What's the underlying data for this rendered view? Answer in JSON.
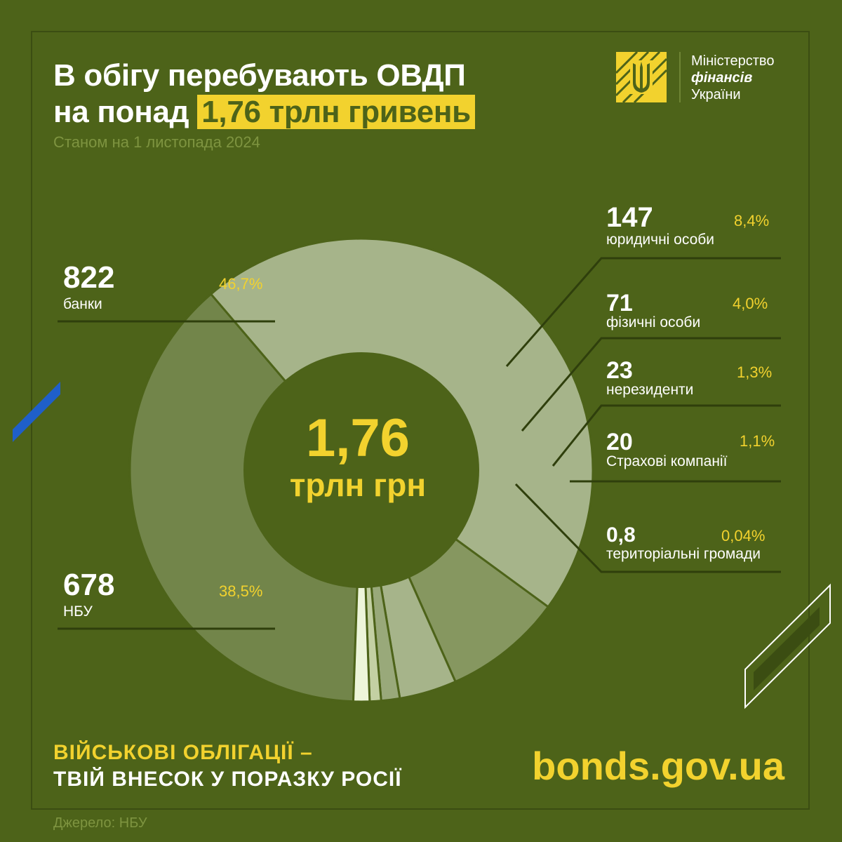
{
  "header": {
    "title_line1": "В обігу перебувають ОВДП",
    "title_line2_prefix": "на понад ",
    "title_line2_highlight": "1,76 трлн гривень",
    "subtitle": "Станом на 1 листопада 2024"
  },
  "logo": {
    "line1": "Міністерство",
    "line2": "фінансів",
    "line3": "України",
    "emblem_icon": "trident-icon"
  },
  "center": {
    "value": "1,76",
    "unit": "трлн грн"
  },
  "footer": {
    "slogan_line1": "ВІЙСЬКОВІ ОБЛІГАЦІЇ –",
    "slogan_line2": "ТВІЙ ВНЕСОК У ПОРАЗКУ РОСІЇ",
    "website": "bonds.gov.ua",
    "source": "Джерело: НБУ"
  },
  "colors": {
    "background": "#4d6319",
    "accent": "#f2d22e",
    "banks": "#a6b48a",
    "nbu": "#72854a",
    "legal_entities": "#869760",
    "individuals": "#a6b48a",
    "nonresidents": "#99a97a",
    "insurance": "#edf5da",
    "communities": "#c3d0a3"
  },
  "chart_data": {
    "type": "pie",
    "donut": true,
    "total": "1,76 трлн грн",
    "categories": [
      "банки",
      "НБУ",
      "юридичні особи",
      "фізичні особи",
      "нерезиденти",
      "Страхові компанії",
      "територіальні громади"
    ],
    "values": [
      822,
      678,
      147,
      71,
      23,
      20,
      0.8
    ],
    "value_labels": [
      "822",
      "678",
      "147",
      "71",
      "23",
      "20",
      "0,8"
    ],
    "percent_labels": [
      "46,7%",
      "38,5%",
      "8,4%",
      "4,0%",
      "1,3%",
      "1,1%",
      "0,04%"
    ]
  }
}
